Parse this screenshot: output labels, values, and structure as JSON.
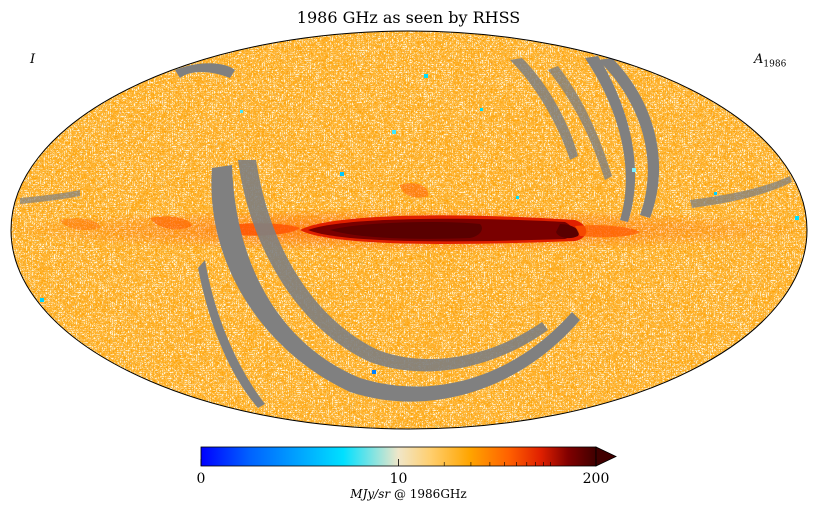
{
  "figure": {
    "title": "1986 GHz as seen by RHSS",
    "stokes_label": "I",
    "component_symbol": "A",
    "component_subscript": "1986",
    "projection": "Mollweide",
    "unmasked_fill": "#ffa500",
    "mask_color": "#808080"
  },
  "colorbar": {
    "label_unit": "MJy/sr",
    "label_at": "@",
    "label_freq": "1986GHz",
    "extend": "max",
    "stops": [
      "#0000ff",
      "#0060ff",
      "#00e0ff",
      "#f0e6c8",
      "#ffcf70",
      "#ffa500",
      "#ff6000",
      "#e02000",
      "#800000",
      "#400000"
    ]
  },
  "chart_data": {
    "type": "heatmap",
    "title": "1986 GHz as seen by RHSS",
    "projection": "Mollweide all-sky map",
    "colormap_range": [
      0,
      200
    ],
    "colorbar_ticks": [
      0,
      10,
      200
    ],
    "colorbar_tick_labels": [
      "0",
      "10",
      "200"
    ],
    "colorbar_label": "MJy/sr @ 1986GHz",
    "features": [
      {
        "name": "galactic plane emission",
        "intensity_range": [
          150,
          200
        ]
      },
      {
        "name": "masked scan-gap stripes",
        "color": "gray"
      }
    ]
  }
}
